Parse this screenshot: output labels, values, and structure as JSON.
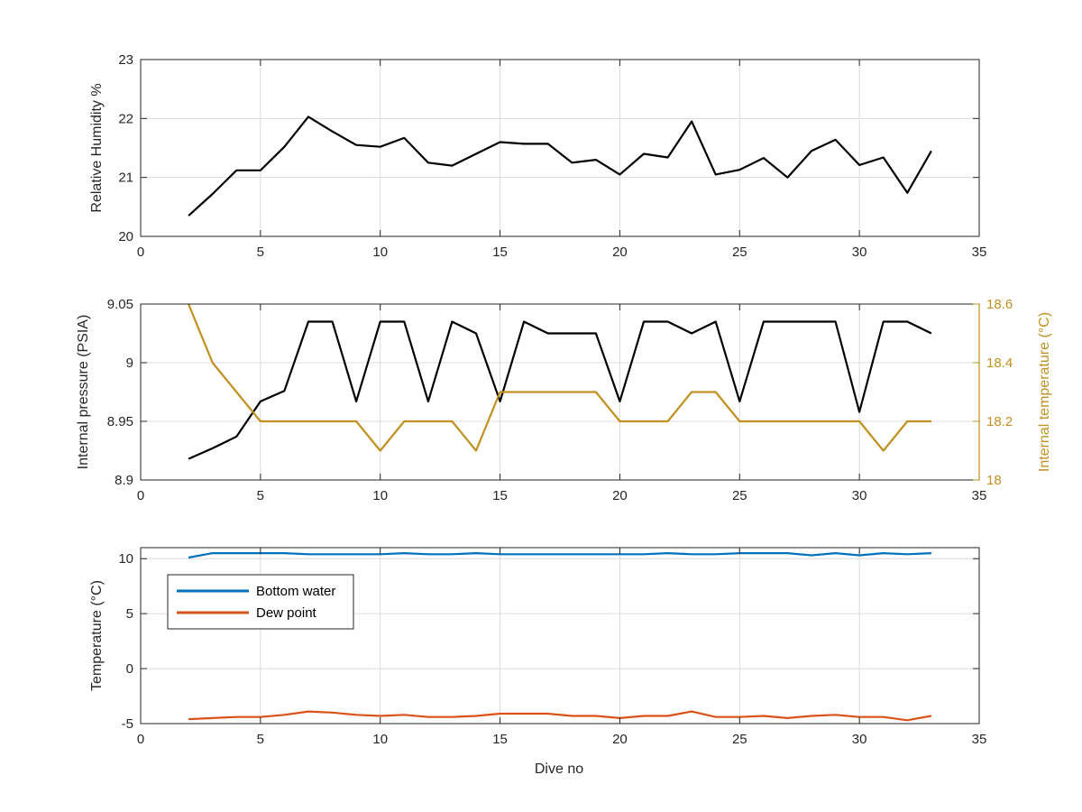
{
  "figure": {
    "xlabel": "Dive no"
  },
  "chart_data": [
    {
      "type": "line",
      "xlabel": "",
      "ylabel": "Relative Humidity %",
      "xlim": [
        0,
        35
      ],
      "ylim": [
        20,
        23
      ],
      "xticks": [
        0,
        5,
        10,
        15,
        20,
        25,
        30,
        35
      ],
      "yticks": [
        20,
        21,
        22,
        23
      ],
      "grid": true,
      "series": [
        {
          "color": "#000000",
          "x": [
            2,
            3,
            4,
            5,
            6,
            7,
            8,
            9,
            10,
            11,
            12,
            13,
            14,
            15,
            16,
            17,
            18,
            19,
            20,
            21,
            22,
            23,
            24,
            25,
            26,
            27,
            28,
            29,
            30,
            31,
            32,
            33
          ],
          "values": [
            20.35,
            20.72,
            21.12,
            21.12,
            21.52,
            22.03,
            21.78,
            21.55,
            21.52,
            21.67,
            21.25,
            21.2,
            21.4,
            21.6,
            21.57,
            21.57,
            21.25,
            21.3,
            21.05,
            21.4,
            21.34,
            21.95,
            21.05,
            21.13,
            21.33,
            21.0,
            21.45,
            21.64,
            21.21,
            21.34,
            20.74,
            21.45
          ]
        }
      ]
    },
    {
      "type": "line",
      "xlabel": "",
      "ylabel": "Internal pressure (PSIA)",
      "y2label": "Internal temperature (°C)",
      "xlim": [
        0,
        35
      ],
      "ylim": [
        8.9,
        9.05
      ],
      "y2lim": [
        18,
        18.6
      ],
      "xticks": [
        0,
        5,
        10,
        15,
        20,
        25,
        30,
        35
      ],
      "yticks": [
        8.9,
        8.95,
        9,
        9.05
      ],
      "y2ticks": [
        18,
        18.2,
        18.4,
        18.6
      ],
      "grid": true,
      "y2color": "#C09020",
      "series": [
        {
          "axis": "left",
          "color": "#000000",
          "x": [
            2,
            3,
            4,
            5,
            6,
            7,
            8,
            9,
            10,
            11,
            12,
            13,
            14,
            15,
            16,
            17,
            18,
            19,
            20,
            21,
            22,
            23,
            24,
            25,
            26,
            27,
            28,
            29,
            30,
            31,
            32,
            33
          ],
          "values": [
            8.918,
            8.927,
            8.937,
            8.967,
            8.976,
            9.035,
            9.035,
            8.967,
            9.035,
            9.035,
            8.967,
            9.035,
            9.025,
            8.967,
            9.035,
            9.025,
            9.025,
            9.025,
            8.967,
            9.035,
            9.035,
            9.025,
            9.035,
            8.967,
            9.035,
            9.035,
            9.035,
            9.035,
            8.958,
            9.035,
            9.035,
            9.025
          ]
        },
        {
          "axis": "right",
          "color": "#C09020",
          "x": [
            2,
            3,
            4,
            5,
            6,
            7,
            8,
            9,
            10,
            11,
            12,
            13,
            14,
            15,
            16,
            17,
            18,
            19,
            20,
            21,
            22,
            23,
            24,
            25,
            26,
            27,
            28,
            29,
            30,
            31,
            32,
            33
          ],
          "values": [
            18.6,
            18.4,
            18.3,
            18.2,
            18.2,
            18.2,
            18.2,
            18.2,
            18.1,
            18.2,
            18.2,
            18.2,
            18.1,
            18.3,
            18.3,
            18.3,
            18.3,
            18.3,
            18.2,
            18.2,
            18.2,
            18.3,
            18.3,
            18.2,
            18.2,
            18.2,
            18.2,
            18.2,
            18.2,
            18.1,
            18.2,
            18.2
          ]
        }
      ]
    },
    {
      "type": "line",
      "xlabel": "Dive no",
      "ylabel": "Temperature (°C)",
      "xlim": [
        0,
        35
      ],
      "ylim": [
        -5,
        11
      ],
      "xticks": [
        0,
        5,
        10,
        15,
        20,
        25,
        30,
        35
      ],
      "yticks": [
        -5,
        0,
        5,
        10
      ],
      "grid": true,
      "legend": "upper-left",
      "series": [
        {
          "name": "Bottom water",
          "color": "#0072BD",
          "x": [
            2,
            3,
            4,
            5,
            6,
            7,
            8,
            9,
            10,
            11,
            12,
            13,
            14,
            15,
            16,
            17,
            18,
            19,
            20,
            21,
            22,
            23,
            24,
            25,
            26,
            27,
            28,
            29,
            30,
            31,
            32,
            33
          ],
          "values": [
            10.1,
            10.5,
            10.5,
            10.5,
            10.5,
            10.4,
            10.4,
            10.4,
            10.4,
            10.5,
            10.4,
            10.4,
            10.5,
            10.4,
            10.4,
            10.4,
            10.4,
            10.4,
            10.4,
            10.4,
            10.5,
            10.4,
            10.4,
            10.5,
            10.5,
            10.5,
            10.3,
            10.5,
            10.3,
            10.5,
            10.4,
            10.5
          ]
        },
        {
          "name": "Dew point",
          "color": "#D95319",
          "x": [
            2,
            3,
            4,
            5,
            6,
            7,
            8,
            9,
            10,
            11,
            12,
            13,
            14,
            15,
            16,
            17,
            18,
            19,
            20,
            21,
            22,
            23,
            24,
            25,
            26,
            27,
            28,
            29,
            30,
            31,
            32,
            33
          ],
          "values": [
            -4.6,
            -4.5,
            -4.4,
            -4.4,
            -4.2,
            -3.9,
            -4.0,
            -4.2,
            -4.3,
            -4.2,
            -4.4,
            -4.4,
            -4.3,
            -4.1,
            -4.1,
            -4.1,
            -4.3,
            -4.3,
            -4.5,
            -4.3,
            -4.3,
            -3.9,
            -4.4,
            -4.4,
            -4.3,
            -4.5,
            -4.3,
            -4.2,
            -4.4,
            -4.4,
            -4.7,
            -4.3
          ]
        }
      ]
    }
  ]
}
